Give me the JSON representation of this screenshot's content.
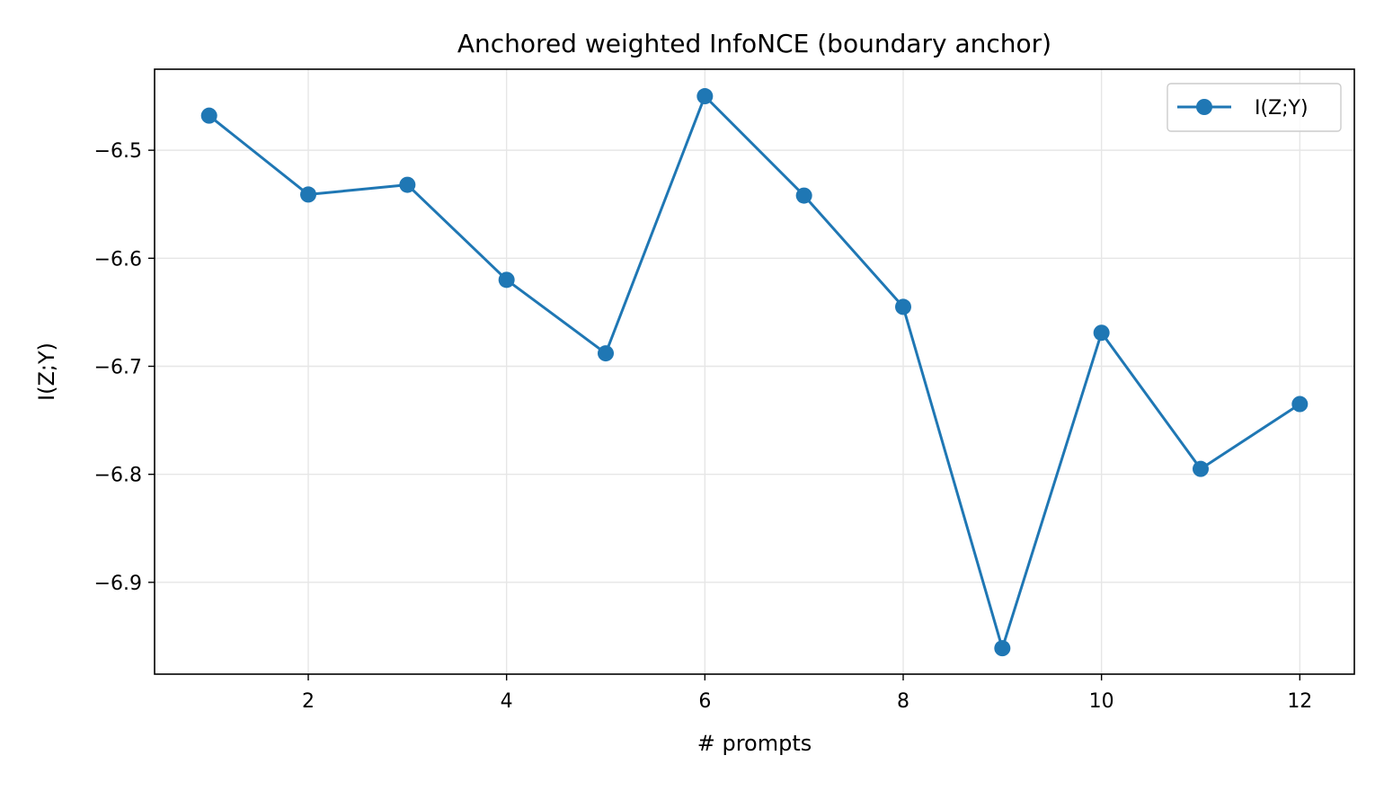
{
  "colors": {
    "series": "#1f77b4",
    "grid": "#e6e6e6",
    "axis": "#000000",
    "legend_border": "#cccccc"
  },
  "chart_data": {
    "type": "line",
    "title": "Anchored weighted InfoNCE (boundary anchor)",
    "xlabel": "# prompts",
    "ylabel": "I(Z;Y)",
    "xlim": [
      0.45,
      12.55
    ],
    "ylim": [
      -6.985,
      -6.425
    ],
    "xticks": [
      2,
      4,
      6,
      8,
      10,
      12
    ],
    "xtick_labels": [
      "2",
      "4",
      "6",
      "8",
      "10",
      "12"
    ],
    "yticks": [
      -6.5,
      -6.6,
      -6.7,
      -6.8,
      -6.9
    ],
    "ytick_labels": [
      "−6.5",
      "−6.6",
      "−6.7",
      "−6.8",
      "−6.9"
    ],
    "grid": true,
    "legend": {
      "position": "top-right",
      "entries": [
        "I(Z;Y)"
      ]
    },
    "x": [
      1,
      2,
      3,
      4,
      5,
      6,
      7,
      8,
      9,
      10,
      11,
      12
    ],
    "series": [
      {
        "name": "I(Z;Y)",
        "marker": "circle",
        "values": [
          -6.468,
          -6.541,
          -6.532,
          -6.62,
          -6.688,
          -6.45,
          -6.542,
          -6.645,
          -6.961,
          -6.669,
          -6.795,
          -6.735
        ]
      }
    ]
  }
}
